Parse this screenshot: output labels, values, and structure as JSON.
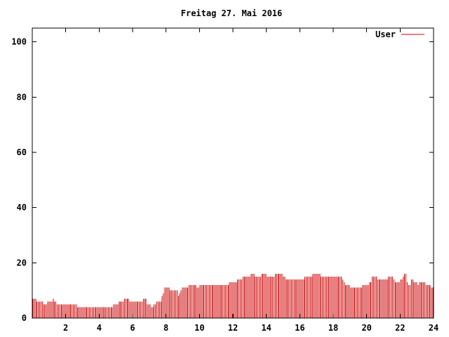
{
  "chart_data": {
    "type": "bar",
    "title": "Freitag 27. Mai 2016",
    "xlabel": "",
    "ylabel": "",
    "xlim": [
      0,
      24
    ],
    "ylim": [
      0,
      105
    ],
    "x_ticks": [
      2,
      4,
      6,
      8,
      10,
      12,
      14,
      16,
      18,
      20,
      22,
      24
    ],
    "x_tick_labels": [
      "2",
      "4",
      "6",
      "8",
      "10",
      "12",
      "14",
      "16",
      "18",
      "20",
      "22",
      "24"
    ],
    "y_ticks": [
      0,
      20,
      40,
      60,
      80,
      100
    ],
    "y_tick_labels": [
      "0",
      "20",
      "40",
      "60",
      "80",
      "100"
    ],
    "legend": "top-right",
    "grid": false,
    "series": [
      {
        "name": "User",
        "color": "#cc0000",
        "step_hours": 0.0833,
        "values": [
          7,
          7,
          7,
          6,
          6,
          6,
          6,
          6,
          5,
          5,
          5,
          6,
          6,
          6,
          6,
          7,
          6,
          6,
          5,
          5,
          5,
          5,
          5,
          5,
          5,
          5,
          5,
          5,
          5,
          5,
          5,
          5,
          5,
          4,
          4,
          4,
          4,
          4,
          4,
          4,
          4,
          4,
          4,
          4,
          4,
          4,
          4,
          4,
          4,
          4,
          4,
          4,
          4,
          4,
          4,
          4,
          4,
          4,
          4,
          4,
          5,
          5,
          5,
          5,
          6,
          6,
          6,
          6,
          7,
          7,
          7,
          7,
          6,
          6,
          6,
          6,
          6,
          6,
          6,
          6,
          6,
          6,
          7,
          7,
          7,
          5,
          5,
          5,
          4,
          4,
          5,
          5,
          6,
          6,
          6,
          6,
          8,
          9,
          11,
          11,
          11,
          11,
          10,
          10,
          10,
          10,
          10,
          10,
          8,
          9,
          10,
          11,
          11,
          11,
          11,
          11,
          12,
          12,
          12,
          12,
          12,
          12,
          11,
          11,
          12,
          12,
          12,
          12,
          12,
          12,
          12,
          12,
          12,
          12,
          12,
          12,
          12,
          12,
          12,
          12,
          12,
          12,
          12,
          12,
          12,
          12,
          13,
          13,
          13,
          13,
          13,
          13,
          14,
          14,
          14,
          14,
          15,
          15,
          15,
          15,
          15,
          15,
          16,
          16,
          16,
          15,
          15,
          15,
          15,
          15,
          16,
          16,
          16,
          16,
          15,
          15,
          15,
          15,
          15,
          15,
          16,
          16,
          16,
          16,
          16,
          16,
          15,
          15,
          14,
          14,
          14,
          14,
          14,
          14,
          14,
          14,
          14,
          14,
          14,
          14,
          14,
          14,
          15,
          15,
          15,
          15,
          15,
          15,
          16,
          16,
          16,
          16,
          16,
          16,
          15,
          15,
          15,
          15,
          15,
          15,
          15,
          15,
          15,
          15,
          15,
          15,
          15,
          15,
          15,
          15,
          14,
          13,
          12,
          12,
          12,
          12,
          11,
          11,
          11,
          11,
          11,
          11,
          11,
          11,
          11,
          12,
          12,
          12,
          12,
          12,
          13,
          13,
          15,
          15,
          15,
          15,
          14,
          14,
          14,
          14,
          14,
          14,
          14,
          14,
          15,
          15,
          15,
          15,
          14,
          13,
          13,
          13,
          13,
          14,
          14,
          15,
          16,
          16,
          13,
          12,
          12,
          14,
          14,
          13,
          13,
          13,
          12,
          13,
          13,
          13,
          13,
          13,
          12,
          12,
          12,
          12,
          11,
          11
        ]
      }
    ]
  }
}
